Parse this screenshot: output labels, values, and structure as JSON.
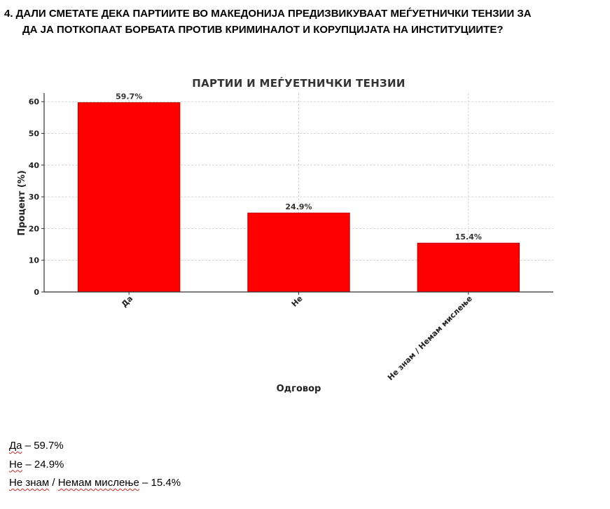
{
  "question": {
    "line1": "4. ДАЛИ СМЕТАТЕ ДЕКА ПАРТИИТЕ ВО МАКЕДОНИЈА ПРЕДИЗВИКУВААТ МЕЃУЕТНИЧКИ ТЕНЗИИ ЗА",
    "line2": "ДА ЈА ПОТКОПААТ БОРБАТА ПРОТИВ КРИМИНАЛОТ И КОРУПЦИЈАТА НА ИНСТИТУЦИИТЕ?"
  },
  "chart_data": {
    "type": "bar",
    "title": "ПАРТИИ И МЕЃУЕТНИЧКИ ТЕНЗИИ",
    "xlabel": "Одговор",
    "ylabel": "Процент (%)",
    "categories": [
      "Да",
      "Не",
      "Не знам / Немам мислење"
    ],
    "values": [
      59.7,
      24.9,
      15.4
    ],
    "value_labels": [
      "59.7%",
      "24.9%",
      "15.4%"
    ],
    "yticks": [
      0,
      10,
      20,
      30,
      40,
      50,
      60
    ],
    "ylim": [
      0,
      62.7
    ],
    "grid": true,
    "bar_color": "#ff0000",
    "bar_edge_color": "#c00000"
  },
  "answers": [
    {
      "label": "Да",
      "text": " – 59.7%"
    },
    {
      "label": "Не",
      "text": " – 24.9%"
    },
    {
      "label": "Не знам",
      "text": " / ",
      "label2": "Немам мислење",
      "text2": " – 15.4%"
    }
  ]
}
